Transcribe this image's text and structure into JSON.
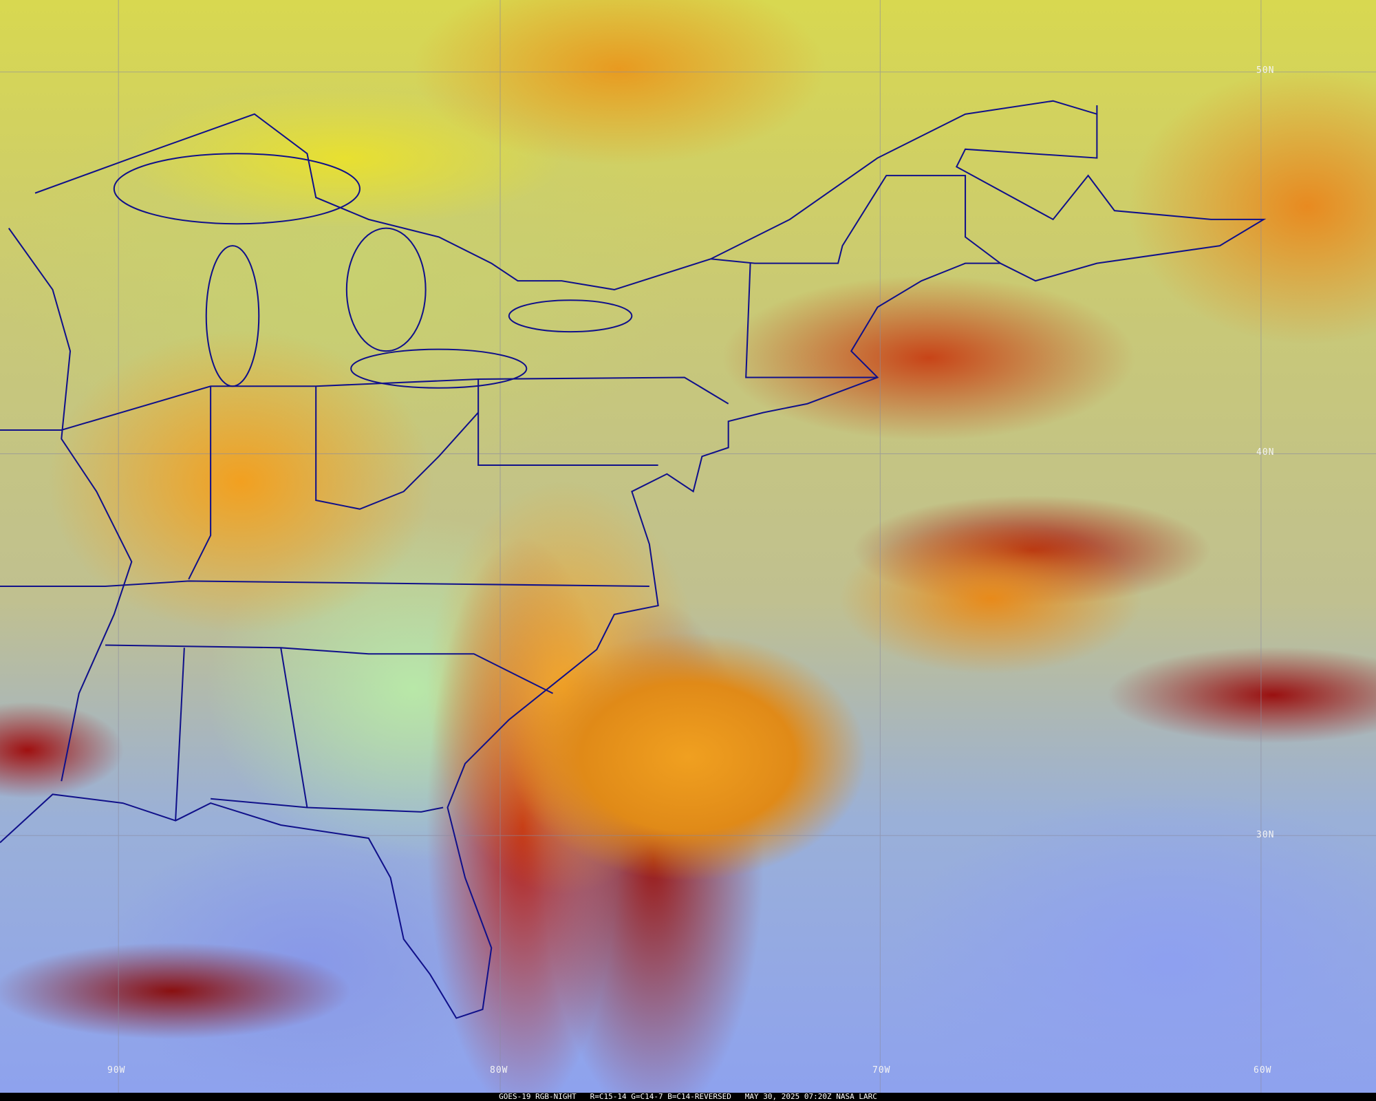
{
  "caption": "GOES-19 RGB-NIGHT   R=C15-14 G=C14-7 B=C14-REVERSED   MAY 30, 2025 07:20Z NASA LARC",
  "latitude_labels": [
    "50N",
    "40N",
    "30N"
  ],
  "longitude_labels": [
    "90W",
    "80W",
    "70W",
    "60W"
  ],
  "colors": {
    "boundaries": "#10108a",
    "gridlines": "#8a8aa0",
    "caption_bg": "#000000",
    "caption_text": "#ffffff"
  }
}
